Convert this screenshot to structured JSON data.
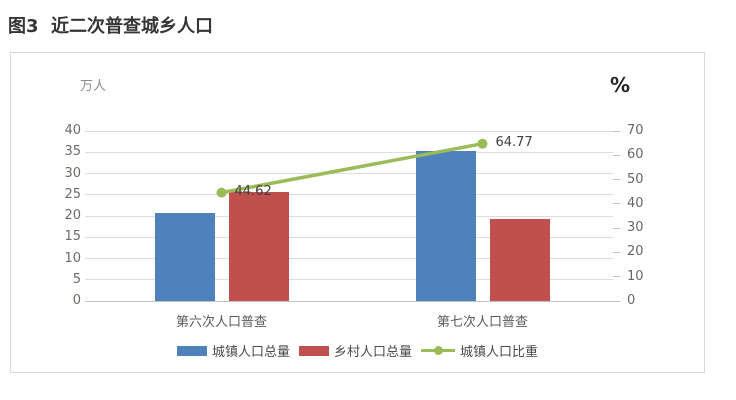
{
  "page": {
    "title": "图3  近二次普查城乡人口"
  },
  "chart": {
    "left_axis": {
      "unit": "万人",
      "ticks": [
        40,
        35,
        30,
        25,
        20,
        15,
        10,
        5,
        0
      ]
    },
    "right_axis": {
      "unit": "%",
      "ticks": [
        70,
        60,
        50,
        40,
        30,
        20,
        10,
        0
      ]
    },
    "legend": [
      {
        "label": "城镇人口总量",
        "type": "bar",
        "color": "#4F81BD"
      },
      {
        "label": "乡村人口总量",
        "type": "bar",
        "color": "#C0504D"
      },
      {
        "label": "城镇人口比重",
        "type": "line",
        "color": "#9BBB59"
      }
    ]
  },
  "chart_data": {
    "type": "bar",
    "title": "图3 近二次普查城乡人口",
    "categories": [
      "第六次人口普查",
      "第七次人口普查"
    ],
    "series": [
      {
        "name": "城镇人口总量",
        "type": "bar",
        "axis": "left",
        "color": "#4F81BD",
        "values": [
          20.6,
          35.4
        ]
      },
      {
        "name": "乡村人口总量",
        "type": "bar",
        "axis": "left",
        "color": "#C0504D",
        "values": [
          25.6,
          19.3
        ]
      },
      {
        "name": "城镇人口比重",
        "type": "line",
        "axis": "right",
        "color": "#9BBB59",
        "values": [
          44.62,
          64.77
        ],
        "data_labels": [
          "44.62",
          "64.77"
        ]
      }
    ],
    "left_axis": {
      "label": "万人",
      "min": 0,
      "max": 40,
      "tick_step": 5
    },
    "right_axis": {
      "label": "%",
      "min": 0,
      "max": 70,
      "tick_step": 10
    },
    "grid": true,
    "legend_position": "bottom"
  }
}
